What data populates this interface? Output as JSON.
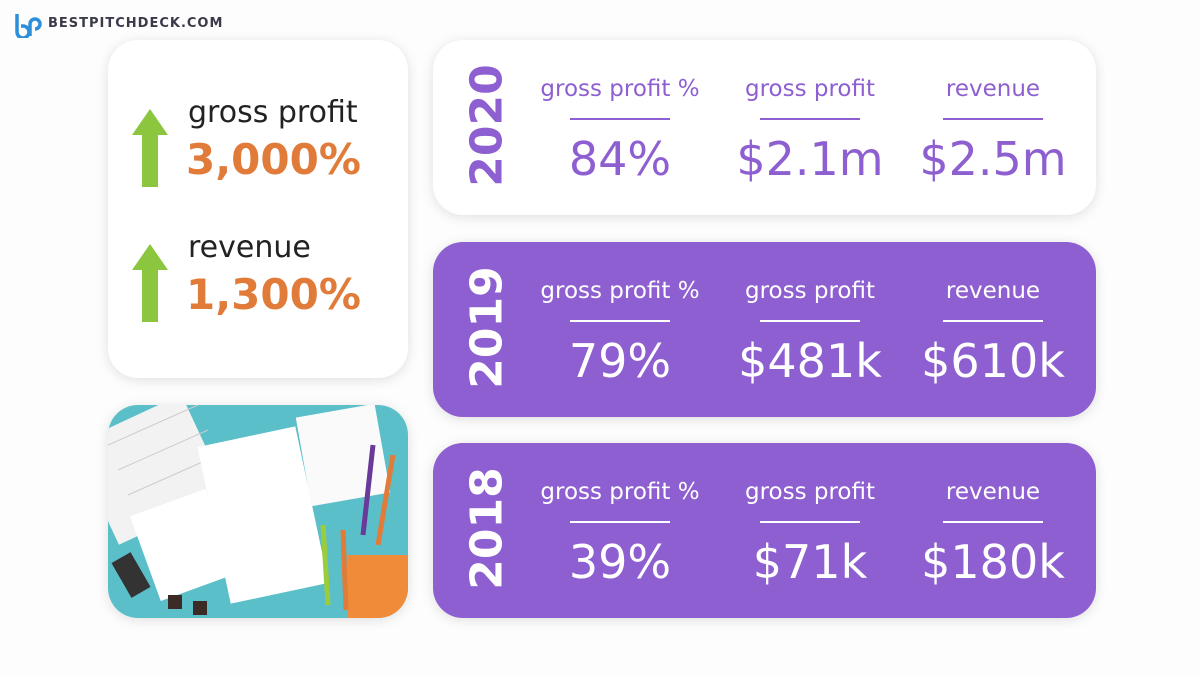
{
  "logo": {
    "text": "BESTPITCHDECK.COM"
  },
  "highlights": [
    {
      "label": "gross profit",
      "value": "3,000%"
    },
    {
      "label": "revenue",
      "value": "1,300%"
    }
  ],
  "years": [
    {
      "year": "2020",
      "metrics": [
        {
          "label": "gross profit %",
          "value": "84%"
        },
        {
          "label": "gross profit",
          "value": "$2.1m"
        },
        {
          "label": "revenue",
          "value": "$2.5m"
        }
      ]
    },
    {
      "year": "2019",
      "metrics": [
        {
          "label": "gross profit %",
          "value": "79%"
        },
        {
          "label": "gross profit",
          "value": "$481k"
        },
        {
          "label": "revenue",
          "value": "$610k"
        }
      ]
    },
    {
      "year": "2018",
      "metrics": [
        {
          "label": "gross profit %",
          "value": "39%"
        },
        {
          "label": "gross profit",
          "value": "$71k"
        },
        {
          "label": "revenue",
          "value": "$180k"
        }
      ]
    }
  ]
}
